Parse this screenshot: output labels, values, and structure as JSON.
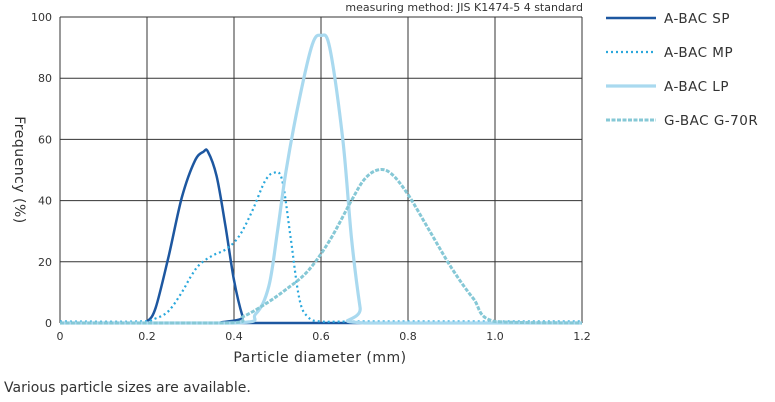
{
  "chart_data": {
    "type": "line",
    "annotation": "measuring method: JIS K1474-5 4 standard",
    "xlabel": "Particle diameter (mm)",
    "ylabel": "Frequency (%)",
    "xlim": [
      0,
      1.2
    ],
    "ylim": [
      0,
      100
    ],
    "x_ticks": [
      "0",
      "0.2",
      "0.4",
      "0.6",
      "0.8",
      "1.0",
      "1.2"
    ],
    "y_ticks": [
      "0",
      "20",
      "40",
      "60",
      "80",
      "100"
    ],
    "grid": true,
    "legend_position": "right",
    "series": [
      {
        "name": "A-BAC SP",
        "color": "#1d57a0",
        "style": "solid",
        "x": [
          0,
          0.18,
          0.2,
          0.22,
          0.25,
          0.28,
          0.31,
          0.33,
          0.34,
          0.36,
          0.38,
          0.4,
          0.42,
          0.43,
          1.2
        ],
        "y": [
          0,
          0,
          0.5,
          5,
          22,
          41,
          53,
          56,
          56,
          48,
          32,
          14,
          2,
          0,
          0
        ]
      },
      {
        "name": "A-BAC MP",
        "color": "#2aa8dc",
        "style": "dotted",
        "x": [
          0,
          0.18,
          0.22,
          0.25,
          0.28,
          0.3,
          0.32,
          0.35,
          0.38,
          0.41,
          0.44,
          0.47,
          0.49,
          0.51,
          0.53,
          0.55,
          0.57,
          0.6,
          0.7,
          1.2
        ],
        "y": [
          0.5,
          0.5,
          1.5,
          4,
          10,
          15,
          19,
          22,
          24,
          28,
          36,
          46,
          49,
          47,
          28,
          8,
          2,
          0.5,
          0.5,
          0.5
        ]
      },
      {
        "name": "A-BAC LP",
        "color": "#a9d9ef",
        "style": "solid",
        "x": [
          0,
          0.4,
          0.45,
          0.48,
          0.5,
          0.52,
          0.55,
          0.58,
          0.6,
          0.62,
          0.65,
          0.67,
          0.69,
          0.7,
          1.2
        ],
        "y": [
          0,
          0,
          3,
          12,
          30,
          50,
          73,
          91,
          94,
          90,
          60,
          28,
          5,
          0,
          0
        ]
      },
      {
        "name": "G-BAC G-70R",
        "color": "#86c8d6",
        "style": "dashed",
        "x": [
          0,
          0.38,
          0.42,
          0.47,
          0.52,
          0.57,
          0.62,
          0.67,
          0.7,
          0.73,
          0.76,
          0.8,
          0.85,
          0.9,
          0.95,
          1.0,
          1.2
        ],
        "y": [
          0,
          0,
          2,
          6,
          11,
          17,
          27,
          40,
          47,
          50,
          49,
          42,
          30,
          18,
          8,
          0.5,
          0
        ]
      }
    ]
  },
  "caption": "Various particle sizes are available."
}
